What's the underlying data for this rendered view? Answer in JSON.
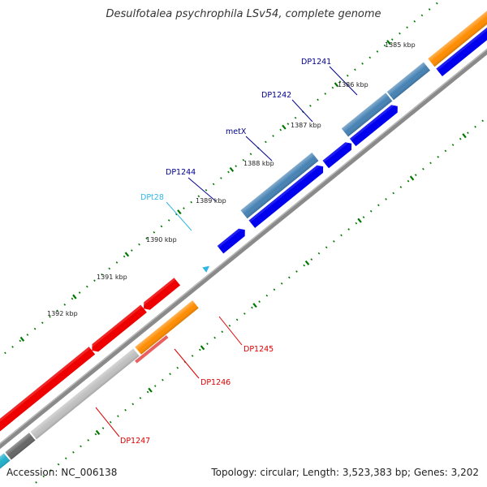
{
  "title": "Desulfotalea psychrophila LSv54, complete genome",
  "footer": {
    "accession": "Accession: NC_006138",
    "summary": "Topology: circular; Length: 3,523,383 bp; Genes: 3,202"
  },
  "kbp_labels": [
    "1385 kbp",
    "1386 kbp",
    "1387 kbp",
    "1388 kbp",
    "1389 kbp",
    "1390 kbp",
    "1391 kbp",
    "1392 kbp"
  ],
  "gene_labels": [
    {
      "id": "DP1241",
      "color": "#00008b"
    },
    {
      "id": "DP1242",
      "color": "#00008b"
    },
    {
      "id": "metX",
      "color": "#00008b"
    },
    {
      "id": "DP1244",
      "color": "#00008b"
    },
    {
      "id": "DPt28",
      "color": "#33b5e5"
    },
    {
      "id": "DP1245",
      "color": "#dd0000"
    },
    {
      "id": "DP1246",
      "color": "#dd0000"
    },
    {
      "id": "DP1247",
      "color": "#dd0000"
    }
  ],
  "colors": {
    "forward_cds": "#0000ee",
    "forward_gene": "#4682b4",
    "reverse_cds": "#ee0000",
    "reverse_gene": "#ff8c00",
    "pseudo": "#c0c0c0",
    "trna": "#33b5e5",
    "backbone": "#888888",
    "ticks": "#007700"
  }
}
